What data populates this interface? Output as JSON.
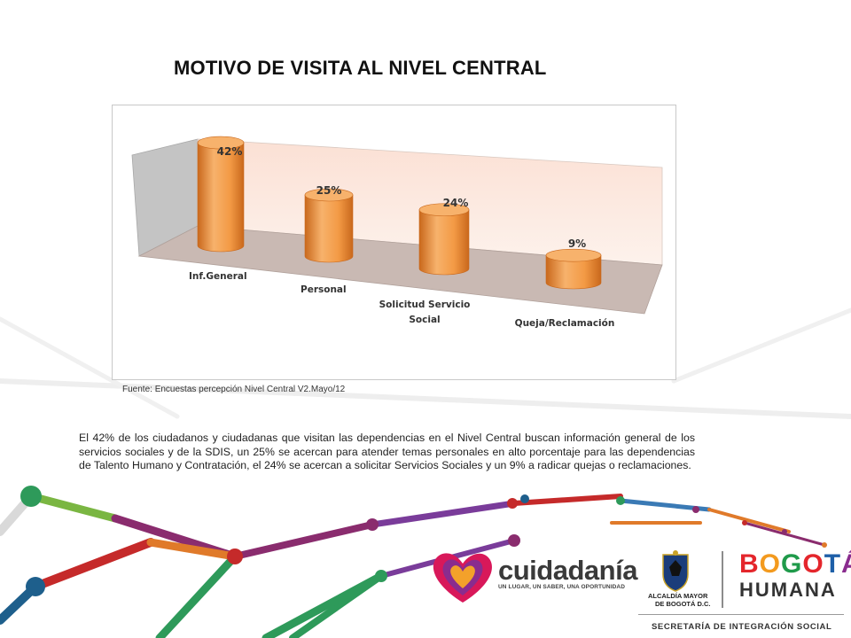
{
  "slide": {
    "title": "MOTIVO DE VISITA AL NIVEL CENTRAL",
    "source_note": "Fuente: Encuestas percepción Nivel Central V2.Mayo/12",
    "body_text": "El 42% de los ciudadanos  y ciudadanas que visitan las dependencias en el Nivel Central buscan información general de los servicios sociales y de la SDIS, un 25% se acercan para atender temas personales en alto porcentaje para las dependencias de  Talento Humano y Contratación, el 24% se acercan a solicitar Servicios Sociales y un 9% a radicar quejas o reclamaciones."
  },
  "chart_data": {
    "type": "bar",
    "style": "3d-cylinder",
    "categories": [
      "Inf.General",
      "Personal",
      "Solicitud Servicio Social",
      "Queja/Reclamación"
    ],
    "values": [
      42,
      25,
      24,
      9
    ],
    "data_labels": [
      "42%",
      "25%",
      "24%",
      "9%"
    ],
    "ylim": [
      0,
      50
    ],
    "grid": false,
    "legend": "none",
    "title": "",
    "xlabel": "",
    "ylabel": "",
    "colors": {
      "bar": "#f39a45",
      "bar_dark": "#c9681c",
      "bar_top": "#f7b26c",
      "back_wall": "#fdebe2",
      "side_wall": "#c4c4c4",
      "floor": "#c9b9b3"
    }
  },
  "footer": {
    "cuidadania": "cuidadanía",
    "cuidadania_tagline": "UN LUGAR, UN SABER, UNA OPORTUNIDAD",
    "alcaldia_line1": "ALCALDÍA MAYOR",
    "alcaldia_line2": "DE BOGOTÁ D.C.",
    "bogota": "BOGOTÁ",
    "humana": "HUMANA",
    "secretaria": "SECRETARÍA DE INTEGRACIÓN SOCIAL"
  }
}
